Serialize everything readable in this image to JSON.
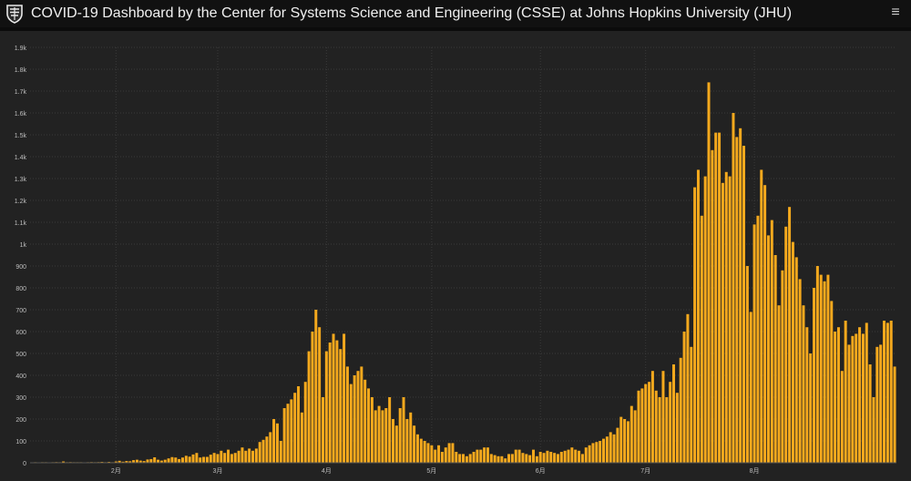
{
  "header": {
    "title": "COVID-19 Dashboard by the Center for Systems Science and Engineering (CSSE) at Johns Hopkins University (JHU)",
    "logo_icon": "jhu-shield-icon",
    "menu_icon": "hamburger-menu-icon"
  },
  "colors": {
    "background": "#222222",
    "header": "#111111",
    "bar": "#f5a91d",
    "grid": "#3a3a3a",
    "tick_text": "#bdbdbd"
  },
  "chart_data": {
    "type": "bar",
    "title": "",
    "xlabel": "",
    "ylabel": "",
    "ylim": [
      0,
      1900
    ],
    "grid": true,
    "yticks": [
      {
        "value": 0,
        "label": "0"
      },
      {
        "value": 100,
        "label": "100"
      },
      {
        "value": 200,
        "label": "200"
      },
      {
        "value": 300,
        "label": "300"
      },
      {
        "value": 400,
        "label": "400"
      },
      {
        "value": 500,
        "label": "500"
      },
      {
        "value": 600,
        "label": "600"
      },
      {
        "value": 700,
        "label": "700"
      },
      {
        "value": 800,
        "label": "800"
      },
      {
        "value": 900,
        "label": "900"
      },
      {
        "value": 1000,
        "label": "1k"
      },
      {
        "value": 1100,
        "label": "1.1k"
      },
      {
        "value": 1200,
        "label": "1.2k"
      },
      {
        "value": 1300,
        "label": "1.3k"
      },
      {
        "value": 1400,
        "label": "1.4k"
      },
      {
        "value": 1500,
        "label": "1.5k"
      },
      {
        "value": 1600,
        "label": "1.6k"
      },
      {
        "value": 1700,
        "label": "1.7k"
      },
      {
        "value": 1800,
        "label": "1.8k"
      },
      {
        "value": 1900,
        "label": "1.9k"
      }
    ],
    "xticks": [
      {
        "index": 24,
        "label": "2月"
      },
      {
        "index": 53,
        "label": "3月"
      },
      {
        "index": 84,
        "label": "4月"
      },
      {
        "index": 114,
        "label": "5月"
      },
      {
        "index": 145,
        "label": "6月"
      },
      {
        "index": 175,
        "label": "7月"
      },
      {
        "index": 206,
        "label": "8月"
      }
    ],
    "values": [
      0,
      1,
      0,
      2,
      1,
      0,
      2,
      3,
      1,
      6,
      2,
      3,
      2,
      1,
      2,
      0,
      1,
      3,
      2,
      3,
      4,
      1,
      4,
      2,
      6,
      9,
      5,
      8,
      7,
      12,
      14,
      10,
      8,
      15,
      17,
      25,
      14,
      10,
      14,
      20,
      26,
      24,
      17,
      24,
      32,
      28,
      38,
      45,
      24,
      27,
      27,
      37,
      45,
      40,
      55,
      45,
      60,
      40,
      45,
      55,
      70,
      55,
      65,
      55,
      65,
      95,
      105,
      120,
      140,
      200,
      180,
      100,
      250,
      270,
      290,
      320,
      350,
      230,
      370,
      510,
      600,
      700,
      620,
      300,
      510,
      550,
      590,
      560,
      520,
      590,
      440,
      360,
      400,
      420,
      440,
      380,
      340,
      300,
      240,
      260,
      240,
      250,
      300,
      200,
      170,
      250,
      300,
      200,
      230,
      170,
      130,
      110,
      100,
      90,
      80,
      60,
      80,
      50,
      70,
      90,
      90,
      50,
      40,
      40,
      30,
      40,
      50,
      60,
      60,
      70,
      70,
      40,
      35,
      30,
      30,
      20,
      40,
      40,
      60,
      60,
      45,
      40,
      35,
      60,
      30,
      50,
      45,
      55,
      50,
      45,
      40,
      50,
      55,
      60,
      70,
      60,
      55,
      40,
      70,
      80,
      90,
      95,
      100,
      110,
      120,
      140,
      130,
      160,
      210,
      200,
      190,
      260,
      240,
      330,
      340,
      360,
      370,
      420,
      330,
      300,
      420,
      300,
      370,
      450,
      320,
      480,
      600,
      680,
      530,
      1260,
      1340,
      1130,
      1310,
      1740,
      1430,
      1510,
      1510,
      1280,
      1330,
      1310,
      1600,
      1490,
      1530,
      1450,
      900,
      690,
      1090,
      1130,
      1340,
      1270,
      1040,
      1110,
      950,
      720,
      880,
      1080,
      1170,
      1010,
      940,
      840,
      720,
      620,
      500,
      800,
      900,
      860,
      830,
      860,
      740,
      600,
      620,
      420,
      650,
      540,
      580,
      590,
      620,
      590,
      640,
      450,
      300,
      530,
      540,
      650,
      640,
      650,
      440
    ]
  }
}
